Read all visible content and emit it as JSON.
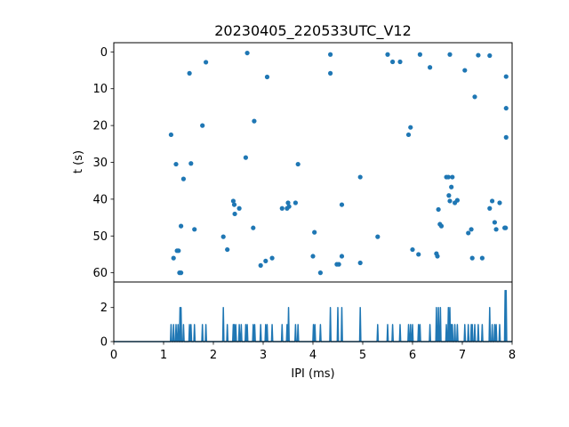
{
  "chart_data": [
    {
      "type": "scatter",
      "title": "20230405_220533UTC_V12",
      "xlabel": "",
      "ylabel": "t (s)",
      "xlim": [
        0,
        8
      ],
      "ylim": [
        62.5,
        -2.5
      ],
      "y_inverted": true,
      "y_ticks": [
        0,
        10,
        20,
        30,
        40,
        50,
        60
      ],
      "marker_color": "#1f77b4",
      "grid": false,
      "points": [
        [
          1.15,
          22.5
        ],
        [
          1.2,
          56.0
        ],
        [
          1.25,
          30.5
        ],
        [
          1.27,
          54.0
        ],
        [
          1.3,
          54.0
        ],
        [
          1.32,
          60.0
        ],
        [
          1.35,
          60.0
        ],
        [
          1.35,
          47.3
        ],
        [
          1.4,
          34.5
        ],
        [
          1.52,
          5.8
        ],
        [
          1.55,
          30.3
        ],
        [
          1.62,
          48.2
        ],
        [
          1.78,
          20.0
        ],
        [
          1.85,
          2.8
        ],
        [
          2.2,
          50.2
        ],
        [
          2.28,
          53.7
        ],
        [
          2.4,
          40.5
        ],
        [
          2.42,
          41.5
        ],
        [
          2.43,
          44.0
        ],
        [
          2.52,
          42.5
        ],
        [
          2.65,
          28.7
        ],
        [
          2.68,
          0.3
        ],
        [
          2.8,
          47.8
        ],
        [
          2.82,
          18.8
        ],
        [
          2.95,
          58.0
        ],
        [
          3.05,
          56.8
        ],
        [
          3.08,
          6.8
        ],
        [
          3.18,
          56.0
        ],
        [
          3.38,
          42.5
        ],
        [
          3.48,
          42.5
        ],
        [
          3.5,
          41.0
        ],
        [
          3.52,
          42.0
        ],
        [
          3.65,
          41.0
        ],
        [
          3.7,
          30.5
        ],
        [
          4.0,
          55.5
        ],
        [
          4.03,
          49.0
        ],
        [
          4.15,
          60.0
        ],
        [
          4.35,
          0.7
        ],
        [
          4.35,
          5.8
        ],
        [
          4.48,
          57.7
        ],
        [
          4.52,
          57.7
        ],
        [
          4.58,
          41.5
        ],
        [
          4.58,
          55.5
        ],
        [
          4.95,
          34.0
        ],
        [
          4.95,
          57.3
        ],
        [
          5.3,
          50.2
        ],
        [
          5.5,
          0.7
        ],
        [
          5.6,
          2.7
        ],
        [
          5.75,
          2.7
        ],
        [
          5.92,
          22.5
        ],
        [
          5.96,
          20.5
        ],
        [
          6.0,
          53.7
        ],
        [
          6.12,
          55.0
        ],
        [
          6.15,
          0.7
        ],
        [
          6.35,
          4.2
        ],
        [
          6.48,
          54.8
        ],
        [
          6.5,
          55.5
        ],
        [
          6.52,
          42.8
        ],
        [
          6.55,
          46.8
        ],
        [
          6.58,
          47.3
        ],
        [
          6.68,
          34.0
        ],
        [
          6.72,
          34.0
        ],
        [
          6.73,
          39.0
        ],
        [
          6.75,
          40.5
        ],
        [
          6.75,
          0.7
        ],
        [
          6.78,
          36.7
        ],
        [
          6.8,
          34.0
        ],
        [
          6.85,
          41.0
        ],
        [
          6.9,
          40.3
        ],
        [
          7.05,
          5.0
        ],
        [
          7.12,
          49.2
        ],
        [
          7.18,
          48.2
        ],
        [
          7.2,
          56.0
        ],
        [
          7.25,
          12.2
        ],
        [
          7.32,
          0.9
        ],
        [
          7.4,
          56.0
        ],
        [
          7.55,
          1.0
        ],
        [
          7.55,
          42.5
        ],
        [
          7.6,
          40.5
        ],
        [
          7.65,
          46.3
        ],
        [
          7.68,
          48.2
        ],
        [
          7.75,
          41.0
        ],
        [
          7.85,
          47.8
        ],
        [
          7.87,
          47.8
        ],
        [
          7.88,
          6.7
        ],
        [
          7.88,
          15.3
        ],
        [
          7.88,
          23.2
        ]
      ]
    },
    {
      "type": "line",
      "xlabel": "IPI (ms)",
      "ylabel": "",
      "xlim": [
        0,
        8
      ],
      "ylim": [
        0,
        3.5
      ],
      "x_ticks": [
        0,
        1,
        2,
        3,
        4,
        5,
        6,
        7,
        8
      ],
      "y_ticks": [
        0,
        2
      ],
      "line_color": "#1f77b4",
      "grid": false,
      "spikes": [
        [
          1.15,
          1
        ],
        [
          1.2,
          1
        ],
        [
          1.25,
          1
        ],
        [
          1.29,
          1
        ],
        [
          1.33,
          2
        ],
        [
          1.35,
          2
        ],
        [
          1.4,
          1
        ],
        [
          1.52,
          1
        ],
        [
          1.55,
          1
        ],
        [
          1.62,
          1
        ],
        [
          1.78,
          1
        ],
        [
          1.85,
          1
        ],
        [
          2.2,
          2
        ],
        [
          2.28,
          1
        ],
        [
          2.4,
          1
        ],
        [
          2.42,
          1
        ],
        [
          2.45,
          1
        ],
        [
          2.52,
          1
        ],
        [
          2.56,
          1
        ],
        [
          2.65,
          1
        ],
        [
          2.68,
          1
        ],
        [
          2.8,
          1
        ],
        [
          2.83,
          1
        ],
        [
          2.95,
          1
        ],
        [
          3.05,
          1
        ],
        [
          3.08,
          1
        ],
        [
          3.18,
          1
        ],
        [
          3.38,
          1
        ],
        [
          3.48,
          1
        ],
        [
          3.51,
          2
        ],
        [
          3.65,
          1
        ],
        [
          3.7,
          1
        ],
        [
          4.01,
          1
        ],
        [
          4.04,
          1
        ],
        [
          4.15,
          1
        ],
        [
          4.35,
          2
        ],
        [
          4.5,
          2
        ],
        [
          4.58,
          2
        ],
        [
          4.95,
          2
        ],
        [
          5.3,
          1
        ],
        [
          5.5,
          1
        ],
        [
          5.6,
          1
        ],
        [
          5.75,
          1
        ],
        [
          5.92,
          1
        ],
        [
          5.96,
          1
        ],
        [
          6.0,
          1
        ],
        [
          6.12,
          1
        ],
        [
          6.15,
          1
        ],
        [
          6.35,
          1
        ],
        [
          6.48,
          2
        ],
        [
          6.52,
          2
        ],
        [
          6.56,
          2
        ],
        [
          6.68,
          1
        ],
        [
          6.72,
          2
        ],
        [
          6.75,
          2
        ],
        [
          6.78,
          1
        ],
        [
          6.8,
          1
        ],
        [
          6.85,
          1
        ],
        [
          6.9,
          1
        ],
        [
          7.05,
          1
        ],
        [
          7.12,
          1
        ],
        [
          7.18,
          1
        ],
        [
          7.2,
          1
        ],
        [
          7.25,
          1
        ],
        [
          7.32,
          1
        ],
        [
          7.4,
          1
        ],
        [
          7.55,
          2
        ],
        [
          7.6,
          1
        ],
        [
          7.65,
          1
        ],
        [
          7.68,
          1
        ],
        [
          7.75,
          1
        ],
        [
          7.86,
          3
        ],
        [
          7.88,
          3
        ]
      ]
    }
  ]
}
